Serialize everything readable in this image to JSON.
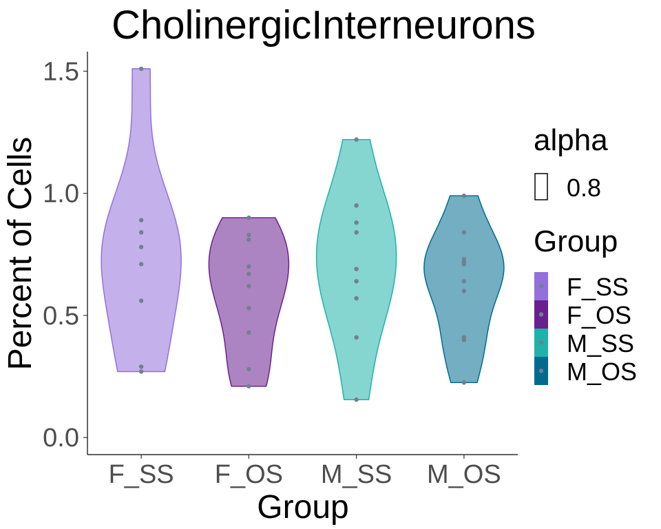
{
  "chart_data": {
    "type": "violin",
    "title": "CholinergicInterneurons",
    "xlabel": "Group",
    "ylabel": "Percent of Cells",
    "ylim": [
      -0.07,
      1.58
    ],
    "yticks": [
      "0.0",
      "0.5",
      "1.0",
      "1.5"
    ],
    "ytick_values": [
      0.0,
      0.5,
      1.0,
      1.5
    ],
    "grid": false,
    "categories": [
      "F_SS",
      "F_OS",
      "M_SS",
      "M_OS"
    ],
    "colors": {
      "F_SS": "#9370DB",
      "F_OS": "#6A1F8F",
      "M_SS": "#20B2AA",
      "M_OS": "#006B8F"
    },
    "point_color": "#708090",
    "fill_alpha": 0.55,
    "series": [
      {
        "name": "F_SS",
        "points": [
          1.51,
          0.89,
          0.84,
          0.78,
          0.71,
          0.56,
          0.29,
          0.27
        ]
      },
      {
        "name": "F_OS",
        "points": [
          0.9,
          0.83,
          0.81,
          0.7,
          0.67,
          0.62,
          0.53,
          0.43,
          0.28,
          0.21
        ]
      },
      {
        "name": "M_SS",
        "points": [
          1.22,
          0.95,
          0.88,
          0.84,
          0.69,
          0.64,
          0.57,
          0.41,
          0.155
        ]
      },
      {
        "name": "M_OS",
        "points": [
          0.99,
          0.84,
          0.73,
          0.72,
          0.71,
          0.64,
          0.6,
          0.41,
          0.4,
          0.225
        ]
      }
    ],
    "legend": {
      "position": "right",
      "alpha_title": "alpha",
      "alpha_value": "0.8",
      "group_title": "Group",
      "entries": [
        "F_SS",
        "F_OS",
        "M_SS",
        "M_OS"
      ]
    }
  }
}
